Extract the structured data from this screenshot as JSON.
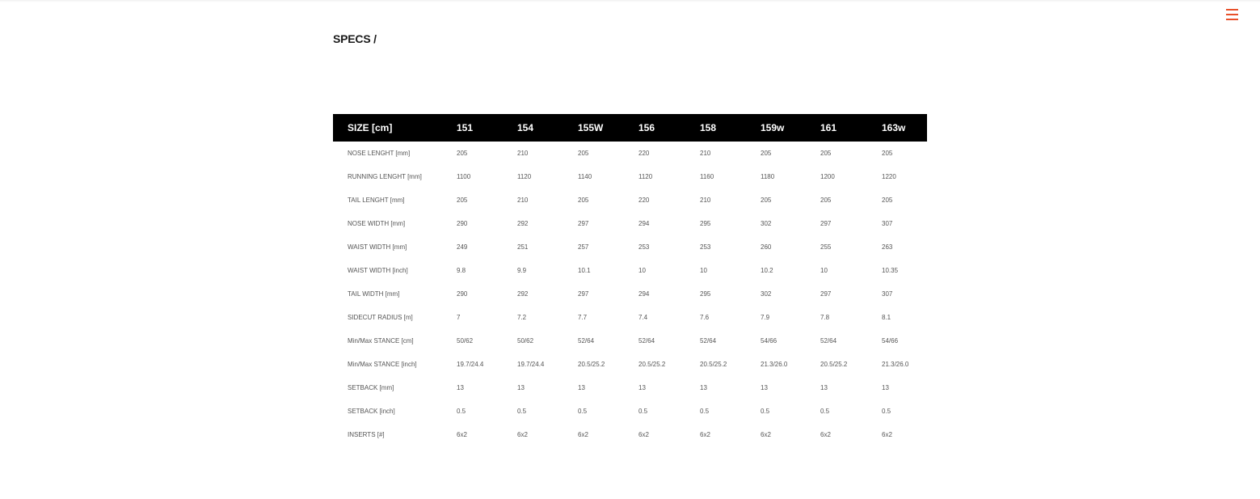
{
  "menu": {
    "icon": "hamburger-menu-icon",
    "color": "#e8502a"
  },
  "page": {
    "title": "SPECS /"
  },
  "table": {
    "header_label": "SIZE [cm]",
    "sizes": [
      "151",
      "154",
      "155W",
      "156",
      "158",
      "159w",
      "161",
      "163w"
    ],
    "rows": [
      {
        "label": "NOSE LENGHT [mm]",
        "values": [
          "205",
          "210",
          "205",
          "220",
          "210",
          "205",
          "205",
          "205"
        ]
      },
      {
        "label": "RUNNING LENGHT [mm]",
        "values": [
          "1100",
          "1120",
          "1140",
          "1120",
          "1160",
          "1180",
          "1200",
          "1220"
        ]
      },
      {
        "label": "TAIL LENGHT [mm]",
        "values": [
          "205",
          "210",
          "205",
          "220",
          "210",
          "205",
          "205",
          "205"
        ]
      },
      {
        "label": "NOSE WIDTH [mm]",
        "values": [
          "290",
          "292",
          "297",
          "294",
          "295",
          "302",
          "297",
          "307"
        ]
      },
      {
        "label": "WAIST WIDTH [mm]",
        "values": [
          "249",
          "251",
          "257",
          "253",
          "253",
          "260",
          "255",
          "263"
        ]
      },
      {
        "label": "WAIST WIDTH [inch]",
        "values": [
          "9.8",
          "9.9",
          "10.1",
          "10",
          "10",
          "10.2",
          "10",
          "10.35"
        ]
      },
      {
        "label": "TAIL WIDTH [mm]",
        "values": [
          "290",
          "292",
          "297",
          "294",
          "295",
          "302",
          "297",
          "307"
        ]
      },
      {
        "label": "SIDECUT RADIUS [m]",
        "values": [
          "7",
          "7.2",
          "7.7",
          "7.4",
          "7.6",
          "7.9",
          "7.8",
          "8.1"
        ]
      },
      {
        "label": "Min/Max STANCE [cm]",
        "values": [
          "50/62",
          "50/62",
          "52/64",
          "52/64",
          "52/64",
          "54/66",
          "52/64",
          "54/66"
        ]
      },
      {
        "label": "Min/Max STANCE [inch]",
        "values": [
          "19.7/24.4",
          "19.7/24.4",
          "20.5/25.2",
          "20.5/25.2",
          "20.5/25.2",
          "21.3/26.0",
          "20.5/25.2",
          "21.3/26.0"
        ]
      },
      {
        "label": "SETBACK [mm]",
        "values": [
          "13",
          "13",
          "13",
          "13",
          "13",
          "13",
          "13",
          "13"
        ]
      },
      {
        "label": "SETBACK [inch]",
        "values": [
          "0.5",
          "0.5",
          "0.5",
          "0.5",
          "0.5",
          "0.5",
          "0.5",
          "0.5"
        ]
      },
      {
        "label": "INSERTS [#]",
        "values": [
          "6x2",
          "6x2",
          "6x2",
          "6x2",
          "6x2",
          "6x2",
          "6x2",
          "6x2"
        ]
      }
    ]
  }
}
